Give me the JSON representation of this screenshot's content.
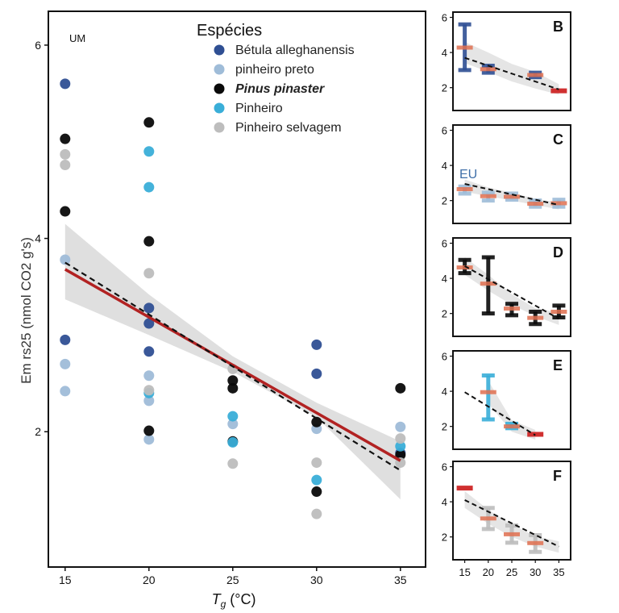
{
  "chart_data": {
    "type": "scatter",
    "ylabel": "Em rs25 (nmol CO2 g's)",
    "xlabel_symbol": "T",
    "xlabel_subscript": "g",
    "xlabel_unit": "(°C)",
    "main_panel_label": "UM",
    "xlim": [
      14,
      36.5
    ],
    "ylim": [
      0.6,
      6.35
    ],
    "xticks": [
      15,
      20,
      25,
      30,
      35
    ],
    "yticks": [
      2,
      4,
      6
    ],
    "legend": {
      "title": "Espécies",
      "entries": [
        {
          "name": "Bétula alleghanensis",
          "color": "#2f4f93",
          "italic": false
        },
        {
          "name": "pinheiro preto",
          "color": "#9fbcd8",
          "italic": false
        },
        {
          "name": "Pinus pinaster",
          "color": "#0a0a0a",
          "italic": true
        },
        {
          "name": "Pinheiro",
          "color": "#3aaed8",
          "italic": false
        },
        {
          "name": "Pinheiro selvagem",
          "color": "#bdbdbd",
          "italic": false
        }
      ]
    },
    "series": [
      {
        "name": "Bétula alleghanensis",
        "color": "#2f4f93",
        "points": [
          [
            15,
            5.6
          ],
          [
            15,
            2.95
          ],
          [
            20,
            3.28
          ],
          [
            20,
            3.12
          ],
          [
            20,
            2.83
          ],
          [
            30,
            2.9
          ],
          [
            30,
            2.6
          ],
          [
            35,
            1.78
          ]
        ]
      },
      {
        "name": "pinheiro preto",
        "color": "#9fbcd8",
        "points": [
          [
            15,
            3.78
          ],
          [
            15,
            2.7
          ],
          [
            15,
            2.42
          ],
          [
            20,
            2.58
          ],
          [
            20,
            2.32
          ],
          [
            20,
            1.92
          ],
          [
            25,
            2.08
          ],
          [
            30,
            2.03
          ],
          [
            35,
            2.05
          ]
        ]
      },
      {
        "name": "Pinus pinaster",
        "color": "#0a0a0a",
        "points": [
          [
            15,
            5.03
          ],
          [
            15,
            4.28
          ],
          [
            20,
            5.2
          ],
          [
            20,
            3.97
          ],
          [
            20,
            2.01
          ],
          [
            25,
            2.53
          ],
          [
            25,
            2.45
          ],
          [
            25,
            1.9
          ],
          [
            30,
            2.1
          ],
          [
            30,
            1.38
          ],
          [
            35,
            2.45
          ],
          [
            35,
            1.76
          ]
        ]
      },
      {
        "name": "Pinheiro",
        "color": "#3aaed8",
        "points": [
          [
            20,
            4.9
          ],
          [
            20,
            4.53
          ],
          [
            20,
            2.4
          ],
          [
            25,
            2.16
          ],
          [
            25,
            1.89
          ],
          [
            30,
            1.5
          ],
          [
            35,
            1.85
          ]
        ]
      },
      {
        "name": "Pinheiro selvagem",
        "color": "#bdbdbd",
        "points": [
          [
            15,
            4.87
          ],
          [
            15,
            4.76
          ],
          [
            20,
            3.64
          ],
          [
            20,
            2.43
          ],
          [
            25,
            2.65
          ],
          [
            25,
            1.67
          ],
          [
            30,
            1.68
          ],
          [
            30,
            1.15
          ],
          [
            35,
            1.93
          ],
          [
            35,
            1.68
          ]
        ]
      }
    ],
    "fit_solid": {
      "color": "#b22222",
      "x": [
        15,
        35
      ],
      "y": [
        3.68,
        1.7
      ]
    },
    "fit_dashed": {
      "x": [
        15,
        35
      ],
      "y": [
        3.75,
        1.6
      ]
    },
    "ci_band": {
      "x": [
        15,
        20,
        25,
        30,
        35
      ],
      "lower": [
        3.37,
        3.0,
        2.62,
        2.15,
        1.3
      ],
      "upper": [
        4.15,
        3.42,
        2.78,
        2.3,
        1.9
      ]
    },
    "subpanels": [
      {
        "label": "B",
        "color": "#2f4f93",
        "extra_label": "",
        "bars": [
          {
            "x": 15,
            "lo": 3.0,
            "hi": 5.6,
            "mean": 4.28
          },
          {
            "x": 20,
            "lo": 2.85,
            "hi": 3.25,
            "mean": 3.05
          },
          {
            "x": 30,
            "lo": 2.6,
            "hi": 2.85,
            "mean": 2.72
          }
        ],
        "means": [
          {
            "x": 35,
            "y": 1.82
          }
        ],
        "dash": [
          3.7,
          1.9
        ],
        "band": {
          "lower": [
            3.4,
            2.9,
            2.35,
            1.95,
            1.6
          ],
          "upper": [
            4.6,
            4.0,
            3.35,
            2.9,
            2.2
          ]
        }
      },
      {
        "label": "C",
        "color": "#9fbcd8",
        "extra_label": "EU",
        "bars": [
          {
            "x": 15,
            "lo": 2.4,
            "hi": 2.8,
            "mean": 2.65
          },
          {
            "x": 20,
            "lo": 2.0,
            "hi": 2.45,
            "mean": 2.25
          },
          {
            "x": 25,
            "lo": 2.05,
            "hi": 2.4,
            "mean": 2.22
          },
          {
            "x": 30,
            "lo": 1.65,
            "hi": 2.0,
            "mean": 1.82
          },
          {
            "x": 35,
            "lo": 1.65,
            "hi": 2.05,
            "mean": 1.85
          }
        ],
        "means": [],
        "dash": [
          2.95,
          1.75
        ],
        "band": {
          "lower": [
            2.5,
            2.25,
            2.0,
            1.75,
            1.5
          ],
          "upper": [
            3.2,
            2.75,
            2.45,
            2.1,
            1.9
          ]
        }
      },
      {
        "label": "D",
        "color": "#0a0a0a",
        "extra_label": "",
        "bars": [
          {
            "x": 15,
            "lo": 4.3,
            "hi": 5.05,
            "mean": 4.62
          },
          {
            "x": 20,
            "lo": 2.0,
            "hi": 5.2,
            "mean": 3.7
          },
          {
            "x": 25,
            "lo": 1.9,
            "hi": 2.55,
            "mean": 2.28
          },
          {
            "x": 30,
            "lo": 1.4,
            "hi": 2.1,
            "mean": 1.75
          },
          {
            "x": 35,
            "lo": 1.78,
            "hi": 2.45,
            "mean": 2.1
          }
        ],
        "means": [],
        "dash": [
          4.7,
          1.7
        ],
        "band": {
          "lower": [
            4.2,
            3.3,
            2.5,
            1.85,
            1.35
          ],
          "upper": [
            5.2,
            4.2,
            3.1,
            2.3,
            2.05
          ]
        }
      },
      {
        "label": "E",
        "color": "#3aaed8",
        "extra_label": "",
        "bars": [
          {
            "x": 20,
            "lo": 2.4,
            "hi": 4.9,
            "mean": 3.95
          },
          {
            "x": 25,
            "lo": 1.9,
            "hi": 2.15,
            "mean": 2.0
          }
        ],
        "means": [
          {
            "x": 30,
            "y": 1.55
          }
        ],
        "dash": [
          3.95,
          1.5
        ],
        "band": {
          "lower": [
            3.3,
            1.7,
            1.25
          ],
          "upper": [
            4.6,
            2.35,
            1.8
          ]
        }
      },
      {
        "label": "F",
        "color": "#bdbdbd",
        "extra_label": "",
        "bars": [
          {
            "x": 20,
            "lo": 2.45,
            "hi": 3.65,
            "mean": 3.05
          },
          {
            "x": 25,
            "lo": 1.67,
            "hi": 2.65,
            "mean": 2.15
          },
          {
            "x": 30,
            "lo": 1.15,
            "hi": 2.1,
            "mean": 1.65
          }
        ],
        "means": [
          {
            "x": 15,
            "y": 4.78
          }
        ],
        "dash": [
          4.1,
          1.45
        ],
        "band": {
          "lower": [
            3.65,
            2.75,
            2.0,
            1.45,
            1.1
          ],
          "upper": [
            4.6,
            3.55,
            2.7,
            2.05,
            1.75
          ]
        }
      }
    ]
  }
}
